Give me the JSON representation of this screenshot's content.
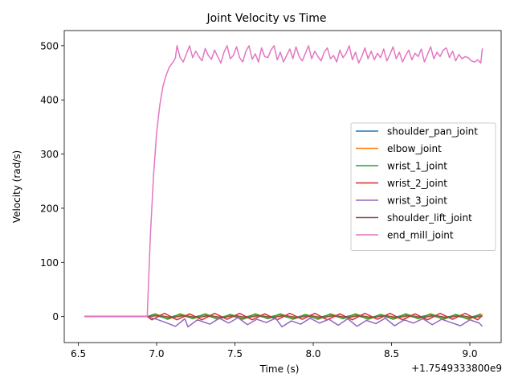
{
  "chart_data": {
    "type": "line",
    "title": "Joint Velocity vs Time",
    "xlabel": "Time (s)",
    "ylabel": "Velocity (rad/s)",
    "x_offset_label": "+1.7549333800e9",
    "xlim": [
      6.41,
      9.2
    ],
    "ylim": [
      -48,
      528
    ],
    "x_ticks": [
      6.5,
      7.0,
      7.5,
      8.0,
      8.5,
      9.0
    ],
    "x_tick_labels": [
      "6.5",
      "7.0",
      "7.5",
      "8.0",
      "8.5",
      "9.0"
    ],
    "y_ticks": [
      0,
      100,
      200,
      300,
      400,
      500
    ],
    "y_tick_labels": [
      "0",
      "100",
      "200",
      "300",
      "400",
      "500"
    ],
    "grid": false,
    "legend_position": "right",
    "series": [
      {
        "name": "shoulder_pan_joint",
        "color": "#1f77b4",
        "points": [
          [
            6.54,
            0
          ],
          [
            6.9,
            0
          ],
          [
            6.94,
            0
          ],
          [
            6.98,
            3
          ],
          [
            7.06,
            -3
          ],
          [
            7.14,
            3
          ],
          [
            7.22,
            -2
          ],
          [
            7.3,
            3
          ],
          [
            7.38,
            -3
          ],
          [
            7.46,
            2
          ],
          [
            7.54,
            -3
          ],
          [
            7.62,
            3
          ],
          [
            7.7,
            -2
          ],
          [
            7.78,
            3
          ],
          [
            7.86,
            -3
          ],
          [
            7.94,
            2
          ],
          [
            8.02,
            -3
          ],
          [
            8.1,
            3
          ],
          [
            8.18,
            -2
          ],
          [
            8.26,
            3
          ],
          [
            8.34,
            -3
          ],
          [
            8.42,
            2
          ],
          [
            8.5,
            -3
          ],
          [
            8.58,
            3
          ],
          [
            8.66,
            -2
          ],
          [
            8.74,
            3
          ],
          [
            8.82,
            -3
          ],
          [
            8.9,
            2
          ],
          [
            8.98,
            -3
          ],
          [
            9.06,
            3
          ],
          [
            9.08,
            0
          ]
        ]
      },
      {
        "name": "elbow_joint",
        "color": "#ff7f0e",
        "points": [
          [
            6.54,
            0
          ],
          [
            6.9,
            0
          ],
          [
            6.94,
            0
          ],
          [
            7.0,
            4
          ],
          [
            7.08,
            -4
          ],
          [
            7.16,
            4
          ],
          [
            7.24,
            -3
          ],
          [
            7.32,
            4
          ],
          [
            7.4,
            -4
          ],
          [
            7.48,
            3
          ],
          [
            7.56,
            -4
          ],
          [
            7.64,
            4
          ],
          [
            7.72,
            -3
          ],
          [
            7.8,
            4
          ],
          [
            7.88,
            -4
          ],
          [
            7.96,
            3
          ],
          [
            8.04,
            -4
          ],
          [
            8.12,
            4
          ],
          [
            8.2,
            -3
          ],
          [
            8.28,
            4
          ],
          [
            8.36,
            -4
          ],
          [
            8.44,
            3
          ],
          [
            8.52,
            -4
          ],
          [
            8.6,
            4
          ],
          [
            8.68,
            -3
          ],
          [
            8.76,
            4
          ],
          [
            8.84,
            -4
          ],
          [
            8.92,
            3
          ],
          [
            9.0,
            -4
          ],
          [
            9.08,
            4
          ]
        ]
      },
      {
        "name": "wrist_1_joint",
        "color": "#2ca02c",
        "points": [
          [
            6.54,
            0
          ],
          [
            6.9,
            0
          ],
          [
            6.94,
            0
          ],
          [
            6.99,
            5
          ],
          [
            7.07,
            -5
          ],
          [
            7.15,
            5
          ],
          [
            7.23,
            -4
          ],
          [
            7.31,
            5
          ],
          [
            7.39,
            -5
          ],
          [
            7.47,
            4
          ],
          [
            7.55,
            -5
          ],
          [
            7.63,
            5
          ],
          [
            7.71,
            -4
          ],
          [
            7.79,
            5
          ],
          [
            7.87,
            -5
          ],
          [
            7.95,
            4
          ],
          [
            8.03,
            -5
          ],
          [
            8.11,
            5
          ],
          [
            8.19,
            -4
          ],
          [
            8.27,
            5
          ],
          [
            8.35,
            -5
          ],
          [
            8.43,
            4
          ],
          [
            8.51,
            -5
          ],
          [
            8.59,
            5
          ],
          [
            8.67,
            -4
          ],
          [
            8.75,
            5
          ],
          [
            8.83,
            -5
          ],
          [
            8.91,
            4
          ],
          [
            8.99,
            -5
          ],
          [
            9.07,
            5
          ]
        ]
      },
      {
        "name": "wrist_2_joint",
        "color": "#d62728",
        "points": [
          [
            6.54,
            0
          ],
          [
            6.9,
            0
          ],
          [
            6.94,
            0
          ],
          [
            6.97,
            -6
          ],
          [
            7.05,
            6
          ],
          [
            7.13,
            -6
          ],
          [
            7.21,
            5
          ],
          [
            7.29,
            -6
          ],
          [
            7.37,
            6
          ],
          [
            7.45,
            -5
          ],
          [
            7.53,
            6
          ],
          [
            7.61,
            -6
          ],
          [
            7.69,
            5
          ],
          [
            7.77,
            -6
          ],
          [
            7.85,
            6
          ],
          [
            7.93,
            -5
          ],
          [
            8.01,
            6
          ],
          [
            8.09,
            -6
          ],
          [
            8.17,
            5
          ],
          [
            8.25,
            -6
          ],
          [
            8.33,
            6
          ],
          [
            8.41,
            -5
          ],
          [
            8.49,
            6
          ],
          [
            8.57,
            -6
          ],
          [
            8.65,
            5
          ],
          [
            8.73,
            -6
          ],
          [
            8.81,
            6
          ],
          [
            8.89,
            -5
          ],
          [
            8.97,
            6
          ],
          [
            9.05,
            -6
          ],
          [
            9.08,
            2
          ]
        ]
      },
      {
        "name": "wrist_3_joint",
        "color": "#9467bd",
        "points": [
          [
            6.54,
            0
          ],
          [
            6.9,
            0
          ],
          [
            6.94,
            0
          ],
          [
            7.0,
            -5
          ],
          [
            7.05,
            -10
          ],
          [
            7.12,
            -18
          ],
          [
            7.18,
            -4
          ],
          [
            7.2,
            -19
          ],
          [
            7.26,
            -6
          ],
          [
            7.34,
            -14
          ],
          [
            7.4,
            -3
          ],
          [
            7.46,
            -12
          ],
          [
            7.52,
            -2
          ],
          [
            7.58,
            -15
          ],
          [
            7.64,
            -5
          ],
          [
            7.7,
            -11
          ],
          [
            7.76,
            -3
          ],
          [
            7.8,
            -19
          ],
          [
            7.86,
            -8
          ],
          [
            7.92,
            -14
          ],
          [
            7.98,
            -3
          ],
          [
            8.04,
            -12
          ],
          [
            8.1,
            -5
          ],
          [
            8.16,
            -16
          ],
          [
            8.22,
            -4
          ],
          [
            8.28,
            -18
          ],
          [
            8.34,
            -7
          ],
          [
            8.4,
            -13
          ],
          [
            8.46,
            -3
          ],
          [
            8.52,
            -17
          ],
          [
            8.58,
            -6
          ],
          [
            8.64,
            -12
          ],
          [
            8.7,
            -4
          ],
          [
            8.76,
            -15
          ],
          [
            8.82,
            -5
          ],
          [
            8.88,
            -11
          ],
          [
            8.94,
            -17
          ],
          [
            9.0,
            -6
          ],
          [
            9.06,
            -12
          ],
          [
            9.08,
            -18
          ]
        ]
      },
      {
        "name": "shoulder_lift_joint",
        "color": "#8c564b",
        "points": [
          [
            6.54,
            0
          ],
          [
            6.9,
            0
          ],
          [
            6.94,
            0
          ],
          [
            7.02,
            2
          ],
          [
            7.1,
            -2
          ],
          [
            7.18,
            2
          ],
          [
            7.26,
            -2
          ],
          [
            7.34,
            2
          ],
          [
            7.42,
            -2
          ],
          [
            7.5,
            2
          ],
          [
            7.58,
            -2
          ],
          [
            7.66,
            2
          ],
          [
            7.74,
            -2
          ],
          [
            7.82,
            2
          ],
          [
            7.9,
            -2
          ],
          [
            7.98,
            2
          ],
          [
            8.06,
            -2
          ],
          [
            8.14,
            2
          ],
          [
            8.22,
            -2
          ],
          [
            8.3,
            2
          ],
          [
            8.38,
            -2
          ],
          [
            8.46,
            2
          ],
          [
            8.54,
            -2
          ],
          [
            8.62,
            2
          ],
          [
            8.7,
            -2
          ],
          [
            8.78,
            2
          ],
          [
            8.86,
            -2
          ],
          [
            8.94,
            2
          ],
          [
            9.02,
            -2
          ],
          [
            9.08,
            1
          ]
        ]
      },
      {
        "name": "end_mill_joint",
        "color": "#e377c2",
        "points": [
          [
            6.54,
            0
          ],
          [
            6.9,
            0
          ],
          [
            6.94,
            0
          ],
          [
            6.96,
            150
          ],
          [
            6.98,
            260
          ],
          [
            7.0,
            340
          ],
          [
            7.02,
            390
          ],
          [
            7.04,
            425
          ],
          [
            7.06,
            445
          ],
          [
            7.08,
            460
          ],
          [
            7.1,
            468
          ],
          [
            7.11,
            472
          ],
          [
            7.12,
            478
          ],
          [
            7.13,
            500
          ],
          [
            7.15,
            478
          ],
          [
            7.17,
            470
          ],
          [
            7.19,
            485
          ],
          [
            7.21,
            500
          ],
          [
            7.23,
            478
          ],
          [
            7.25,
            490
          ],
          [
            7.27,
            480
          ],
          [
            7.29,
            472
          ],
          [
            7.31,
            495
          ],
          [
            7.33,
            482
          ],
          [
            7.35,
            475
          ],
          [
            7.37,
            492
          ],
          [
            7.39,
            480
          ],
          [
            7.41,
            468
          ],
          [
            7.43,
            488
          ],
          [
            7.45,
            500
          ],
          [
            7.47,
            476
          ],
          [
            7.49,
            482
          ],
          [
            7.51,
            498
          ],
          [
            7.53,
            478
          ],
          [
            7.55,
            470
          ],
          [
            7.57,
            490
          ],
          [
            7.59,
            500
          ],
          [
            7.61,
            475
          ],
          [
            7.63,
            485
          ],
          [
            7.65,
            470
          ],
          [
            7.67,
            496
          ],
          [
            7.69,
            480
          ],
          [
            7.71,
            478
          ],
          [
            7.73,
            492
          ],
          [
            7.75,
            500
          ],
          [
            7.77,
            474
          ],
          [
            7.79,
            488
          ],
          [
            7.81,
            470
          ],
          [
            7.83,
            482
          ],
          [
            7.85,
            494
          ],
          [
            7.87,
            476
          ],
          [
            7.89,
            498
          ],
          [
            7.91,
            480
          ],
          [
            7.93,
            472
          ],
          [
            7.95,
            486
          ],
          [
            7.97,
            500
          ],
          [
            7.99,
            476
          ],
          [
            8.01,
            490
          ],
          [
            8.03,
            480
          ],
          [
            8.05,
            472
          ],
          [
            8.07,
            488
          ],
          [
            8.09,
            496
          ],
          [
            8.11,
            476
          ],
          [
            8.13,
            482
          ],
          [
            8.15,
            470
          ],
          [
            8.17,
            492
          ],
          [
            8.19,
            478
          ],
          [
            8.21,
            486
          ],
          [
            8.23,
            500
          ],
          [
            8.25,
            474
          ],
          [
            8.27,
            488
          ],
          [
            8.29,
            468
          ],
          [
            8.31,
            480
          ],
          [
            8.33,
            496
          ],
          [
            8.35,
            476
          ],
          [
            8.37,
            490
          ],
          [
            8.39,
            474
          ],
          [
            8.41,
            486
          ],
          [
            8.43,
            478
          ],
          [
            8.45,
            494
          ],
          [
            8.47,
            472
          ],
          [
            8.49,
            484
          ],
          [
            8.51,
            498
          ],
          [
            8.53,
            476
          ],
          [
            8.55,
            488
          ],
          [
            8.57,
            470
          ],
          [
            8.59,
            482
          ],
          [
            8.61,
            492
          ],
          [
            8.63,
            474
          ],
          [
            8.65,
            486
          ],
          [
            8.67,
            480
          ],
          [
            8.69,
            494
          ],
          [
            8.71,
            470
          ],
          [
            8.73,
            484
          ],
          [
            8.75,
            498
          ],
          [
            8.77,
            476
          ],
          [
            8.79,
            488
          ],
          [
            8.81,
            480
          ],
          [
            8.83,
            492
          ],
          [
            8.85,
            496
          ],
          [
            8.87,
            478
          ],
          [
            8.89,
            490
          ],
          [
            8.91,
            472
          ],
          [
            8.93,
            484
          ],
          [
            8.95,
            476
          ],
          [
            8.97,
            480
          ],
          [
            8.99,
            478
          ],
          [
            9.01,
            472
          ],
          [
            9.03,
            470
          ],
          [
            9.05,
            474
          ],
          [
            9.07,
            468
          ],
          [
            9.08,
            495
          ]
        ]
      }
    ]
  }
}
